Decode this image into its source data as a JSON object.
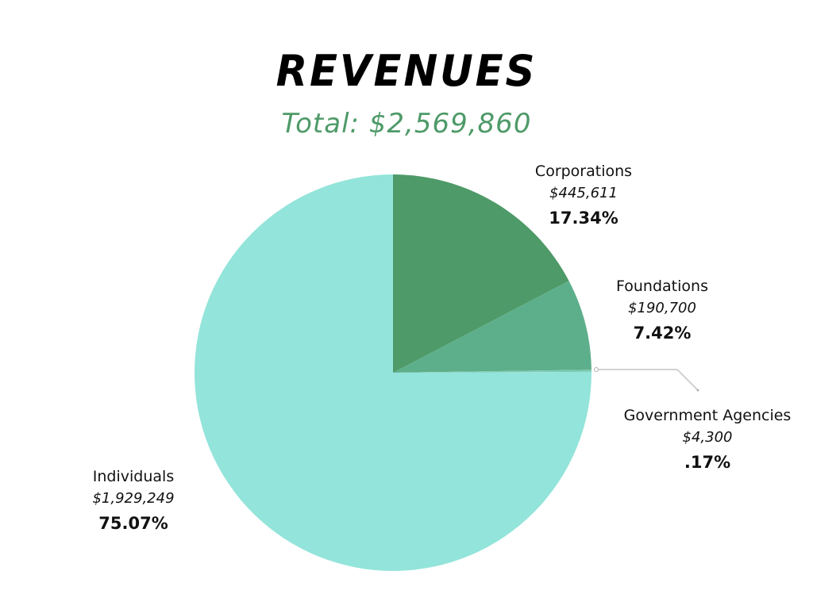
{
  "chart_data": {
    "type": "pie",
    "title": "REVENUES",
    "subtitle": "Total: $2,569,860",
    "start_angle": "top",
    "direction": "clockwise",
    "slices": [
      {
        "label": "Corporations",
        "amount": "$445,611",
        "percent_label": "17.34%",
        "value": 17.34,
        "color": "#4e9a68"
      },
      {
        "label": "Foundations",
        "amount": "$190,700",
        "percent_label": "7.42%",
        "value": 7.42,
        "color": "#5daf8b"
      },
      {
        "label": "Government Agencies",
        "amount": "$4,300",
        "percent_label": ".17%",
        "value": 0.17,
        "color": "#7cc9b0"
      },
      {
        "label": "Individuals",
        "amount": "$1,929,249",
        "percent_label": "75.07%",
        "value": 75.07,
        "color": "#93e4da"
      }
    ]
  }
}
